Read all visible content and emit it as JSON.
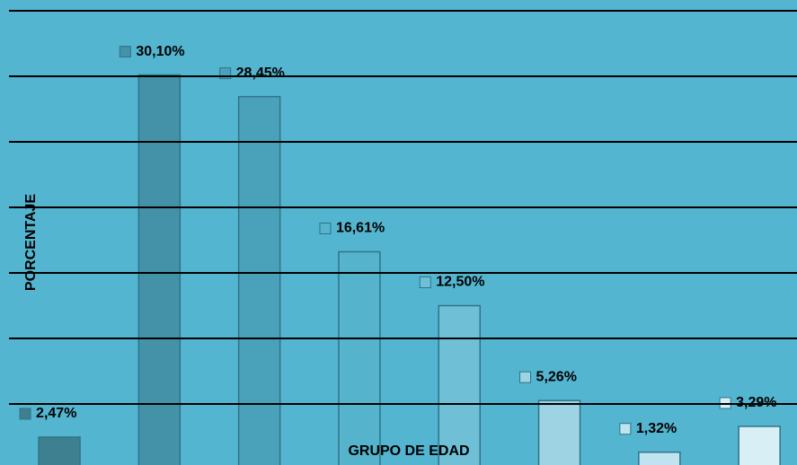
{
  "chart_data": {
    "type": "bar",
    "categories": [
      null,
      null,
      null,
      null,
      null,
      null,
      null,
      null
    ],
    "values": [
      2.47,
      30.1,
      28.45,
      16.61,
      12.5,
      5.26,
      1.32,
      3.29
    ],
    "value_labels": [
      "2,47%",
      "30,10%",
      "28,45%",
      "16,61%",
      "12,50%",
      "5,26%",
      "1,32%",
      "3,29%"
    ],
    "colors": [
      "#3f8090",
      "#4492a8",
      "#4aa2ba",
      "#55b3cc",
      "#6fc0d7",
      "#9dd3e3",
      "#c0e4ef",
      "#d8eff6"
    ],
    "xlabel": "GRUPO DE EDAD",
    "ylabel": "PORCENTAJE",
    "ylim": [
      0,
      35
    ],
    "yticks": [
      0,
      5,
      10,
      15,
      20,
      25,
      30,
      35
    ],
    "grid": true
  }
}
